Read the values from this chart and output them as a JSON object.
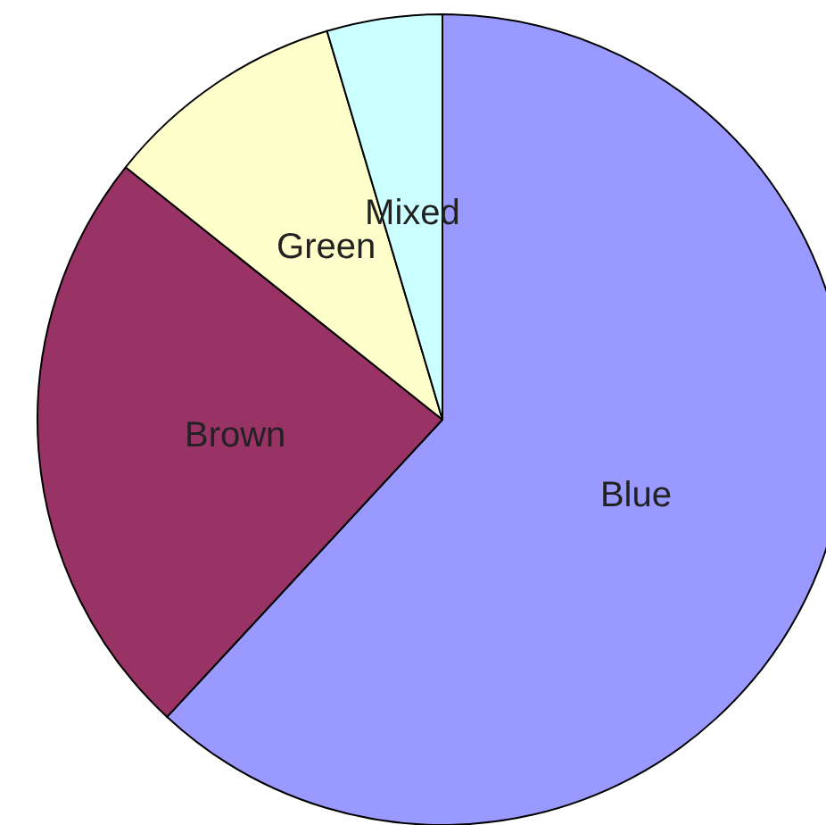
{
  "chart_data": {
    "type": "pie",
    "categories": [
      "Blue",
      "Brown",
      "Green",
      "Mixed"
    ],
    "values": [
      61.9,
      23.8,
      9.7,
      4.6
    ],
    "colors": [
      "#9999ff",
      "#993366",
      "#ffffcc",
      "#ccffff"
    ]
  }
}
